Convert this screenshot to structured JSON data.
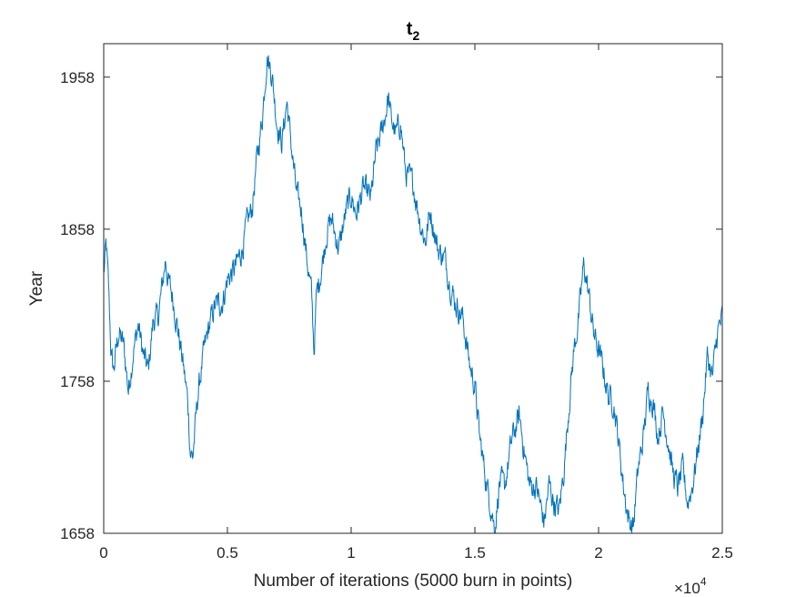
{
  "chart_data": {
    "type": "line",
    "title": {
      "base": "t",
      "subscript": "2"
    },
    "xlabel": "Number of iterations (5000 burn in points)",
    "ylabel": "Year",
    "x_multiplier": {
      "prefix": "×10",
      "exponent": "4"
    },
    "xlim": [
      0,
      2.5
    ],
    "ylim": [
      1658,
      1980
    ],
    "xticks": [
      0,
      0.5,
      1,
      1.5,
      2,
      2.5
    ],
    "xtick_labels": [
      "0",
      "0.5",
      "1",
      "1.5",
      "2",
      "2.5"
    ],
    "yticks": [
      1658,
      1758,
      1858,
      1958
    ],
    "ytick_labels": [
      "1658",
      "1758",
      "1858",
      "1958"
    ],
    "grid": false,
    "color": "#0072BD",
    "series": [
      {
        "x": [
          0,
          0.01,
          0.02,
          0.03,
          0.04,
          0.06,
          0.08,
          0.1,
          0.12,
          0.14,
          0.16,
          0.18,
          0.2,
          0.22,
          0.24,
          0.25,
          0.26,
          0.28,
          0.3,
          0.32,
          0.34,
          0.35,
          0.36,
          0.38,
          0.4,
          0.42,
          0.45,
          0.48,
          0.5,
          0.53,
          0.56,
          0.58,
          0.6,
          0.62,
          0.64,
          0.66,
          0.68,
          0.7,
          0.72,
          0.74,
          0.76,
          0.78,
          0.8,
          0.82,
          0.84,
          0.85,
          0.86,
          0.88,
          0.9,
          0.92,
          0.95,
          0.98,
          1.0,
          1.02,
          1.05,
          1.08,
          1.1,
          1.12,
          1.14,
          1.15,
          1.16,
          1.18,
          1.2,
          1.22,
          1.25,
          1.28,
          1.3,
          1.32,
          1.35,
          1.38,
          1.4,
          1.42,
          1.45,
          1.48,
          1.5,
          1.52,
          1.55,
          1.57,
          1.58,
          1.6,
          1.62,
          1.65,
          1.68,
          1.7,
          1.72,
          1.75,
          1.78,
          1.8,
          1.82,
          1.84,
          1.86,
          1.88,
          1.9,
          1.92,
          1.94,
          1.96,
          1.98,
          2.0,
          2.02,
          2.04,
          2.06,
          2.08,
          2.1,
          2.12,
          2.14,
          2.16,
          2.18,
          2.2,
          2.22,
          2.24,
          2.26,
          2.28,
          2.3,
          2.32,
          2.34,
          2.36,
          2.38,
          2.4,
          2.42,
          2.44,
          2.46,
          2.48,
          2.5
        ],
        "y": [
          1828,
          1848,
          1818,
          1775,
          1765,
          1790,
          1782,
          1752,
          1778,
          1795,
          1775,
          1765,
          1798,
          1800,
          1825,
          1838,
          1825,
          1812,
          1792,
          1770,
          1745,
          1712,
          1708,
          1748,
          1772,
          1790,
          1808,
          1810,
          1825,
          1832,
          1845,
          1862,
          1872,
          1905,
          1930,
          1972,
          1960,
          1928,
          1915,
          1942,
          1910,
          1880,
          1870,
          1840,
          1815,
          1778,
          1815,
          1832,
          1855,
          1865,
          1845,
          1870,
          1880,
          1868,
          1885,
          1878,
          1908,
          1920,
          1935,
          1945,
          1932,
          1920,
          1928,
          1895,
          1888,
          1862,
          1850,
          1870,
          1845,
          1838,
          1822,
          1810,
          1800,
          1768,
          1755,
          1720,
          1688,
          1672,
          1660,
          1692,
          1688,
          1720,
          1735,
          1712,
          1690,
          1688,
          1665,
          1690,
          1678,
          1672,
          1700,
          1742,
          1778,
          1800,
          1835,
          1815,
          1790,
          1778,
          1765,
          1748,
          1745,
          1720,
          1690,
          1668,
          1662,
          1700,
          1720,
          1752,
          1745,
          1722,
          1738,
          1720,
          1698,
          1688,
          1700,
          1678,
          1690,
          1712,
          1735,
          1775,
          1760,
          1790,
          1800
        ]
      }
    ]
  }
}
